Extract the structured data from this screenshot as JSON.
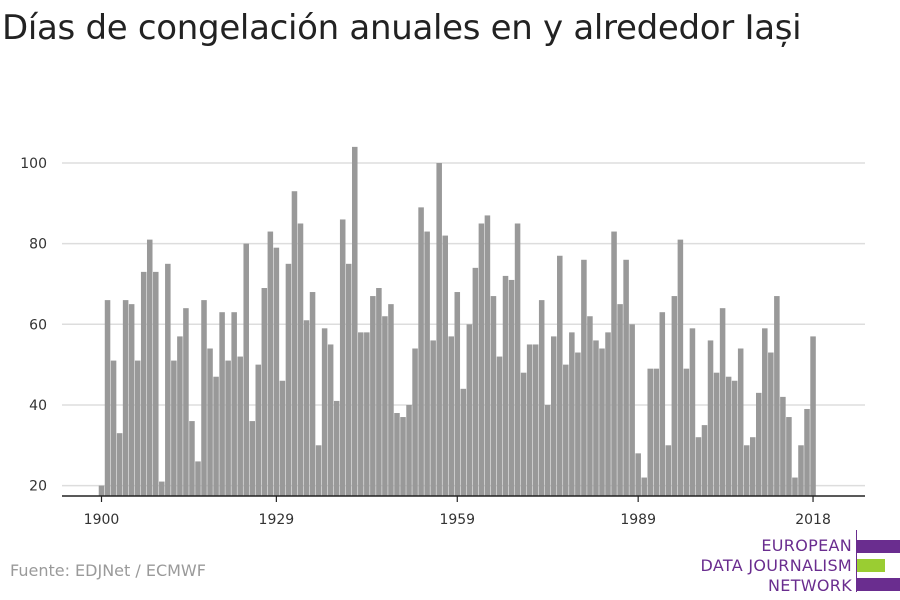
{
  "header": {
    "title": "Días de congelación anuales en y alrededor Iași"
  },
  "footer": {
    "source": "Fuente: EDJNet / ECMWF"
  },
  "logo": {
    "line1": "EUROPEAN",
    "line2": "DATA JOURNALISM",
    "line3": "NETWORK",
    "colors": {
      "purple": "#6a2d8f",
      "green": "#9acd32"
    }
  },
  "chart_data": {
    "type": "bar",
    "x_start": 1900,
    "x_end": 2018,
    "x_ticks": [
      1900,
      1929,
      1959,
      1989,
      2018
    ],
    "y_ticks": [
      20,
      40,
      60,
      80,
      100
    ],
    "ylim": [
      17,
      107
    ],
    "grid": true,
    "bar_color": "#999999",
    "values": [
      20,
      66,
      51,
      33,
      66,
      65,
      51,
      73,
      81,
      73,
      21,
      75,
      51,
      57,
      64,
      36,
      26,
      66,
      54,
      47,
      63,
      51,
      63,
      52,
      80,
      36,
      50,
      69,
      83,
      79,
      46,
      75,
      93,
      85,
      61,
      68,
      30,
      59,
      55,
      41,
      86,
      75,
      104,
      58,
      58,
      67,
      69,
      62,
      65,
      38,
      37,
      40,
      54,
      89,
      83,
      56,
      100,
      82,
      57,
      68,
      44,
      60,
      74,
      85,
      87,
      67,
      52,
      72,
      71,
      85,
      48,
      55,
      55,
      66,
      40,
      57,
      77,
      50,
      58,
      53,
      76,
      62,
      56,
      54,
      58,
      83,
      65,
      76,
      60,
      28,
      22,
      49,
      49,
      63,
      30,
      67,
      81,
      49,
      59,
      32,
      35,
      56,
      48,
      64,
      47,
      46,
      54,
      30,
      32,
      43,
      59,
      53,
      67,
      42,
      37,
      22,
      30,
      39,
      57
    ]
  }
}
